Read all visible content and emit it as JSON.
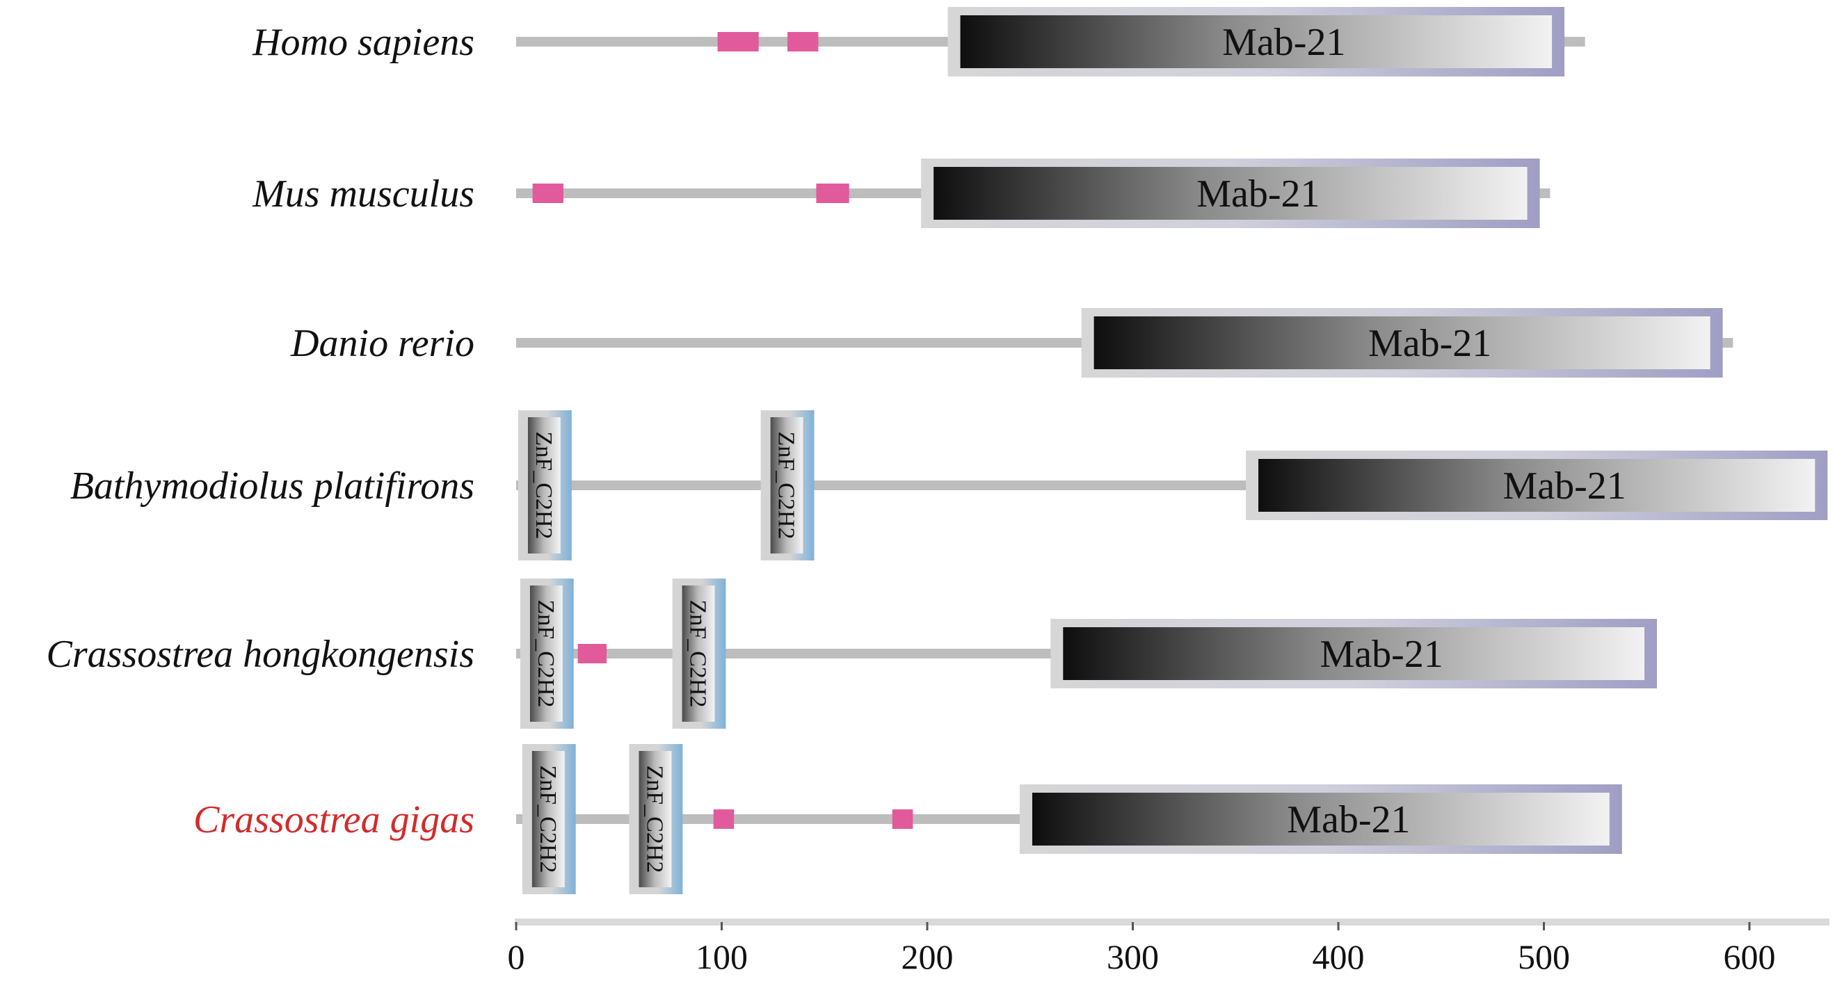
{
  "chart_data": {
    "type": "protein-domain-diagram",
    "x_axis": {
      "ticks": [
        0,
        100,
        200,
        300,
        400,
        500,
        600
      ],
      "range": [
        0,
        640
      ]
    },
    "colors": {
      "backbone": "#bdbdbd",
      "motif": "#e05a9c",
      "mab_gradient_start": "#0e0e0e",
      "mab_gradient_end": "#f2f2f2",
      "mab_border_start": "#d6d6d6",
      "mab_border_end": "#a09ec4",
      "znf_border": "#7fb2d9",
      "highlight_label": "#d22b2b"
    },
    "proteins": [
      {
        "species": "Homo sapiens",
        "highlight": false,
        "length": 520,
        "motifs": [
          {
            "start": 98,
            "end": 118
          },
          {
            "start": 132,
            "end": 147
          }
        ],
        "znf": [],
        "mab21": {
          "start": 210,
          "end": 510,
          "label": "Mab-21"
        }
      },
      {
        "species": "Mus musculus",
        "highlight": false,
        "length": 503,
        "motifs": [
          {
            "start": 8,
            "end": 23
          },
          {
            "start": 146,
            "end": 162
          }
        ],
        "znf": [],
        "mab21": {
          "start": 197,
          "end": 498,
          "label": "Mab-21"
        }
      },
      {
        "species": "Danio rerio",
        "highlight": false,
        "length": 592,
        "motifs": [],
        "znf": [],
        "mab21": {
          "start": 275,
          "end": 587,
          "label": "Mab-21"
        }
      },
      {
        "species": "Bathymodiolus platifirons",
        "highlight": false,
        "length": 638,
        "motifs": [],
        "znf": [
          {
            "start": 1,
            "end": 27,
            "label": "ZnF_C2H2"
          },
          {
            "start": 119,
            "end": 145,
            "label": "ZnF_C2H2"
          }
        ],
        "mab21": {
          "start": 355,
          "end": 638,
          "label": "Mab-21"
        }
      },
      {
        "species": "Crassostrea hongkongensis",
        "highlight": false,
        "length": 552,
        "motifs": [
          {
            "start": 30,
            "end": 44
          }
        ],
        "znf": [
          {
            "start": 2,
            "end": 28,
            "label": "ZnF_C2H2"
          },
          {
            "start": 76,
            "end": 102,
            "label": "ZnF_C2H2"
          }
        ],
        "mab21": {
          "start": 260,
          "end": 555,
          "label": "Mab-21"
        }
      },
      {
        "species": "Crassostrea gigas",
        "highlight": true,
        "length": 535,
        "motifs": [
          {
            "start": 96,
            "end": 106
          },
          {
            "start": 183,
            "end": 193
          }
        ],
        "znf": [
          {
            "start": 3,
            "end": 29,
            "label": "ZnF_C2H2"
          },
          {
            "start": 55,
            "end": 81,
            "label": "ZnF_C2H2"
          }
        ],
        "mab21": {
          "start": 245,
          "end": 538,
          "label": "Mab-21"
        }
      }
    ]
  }
}
